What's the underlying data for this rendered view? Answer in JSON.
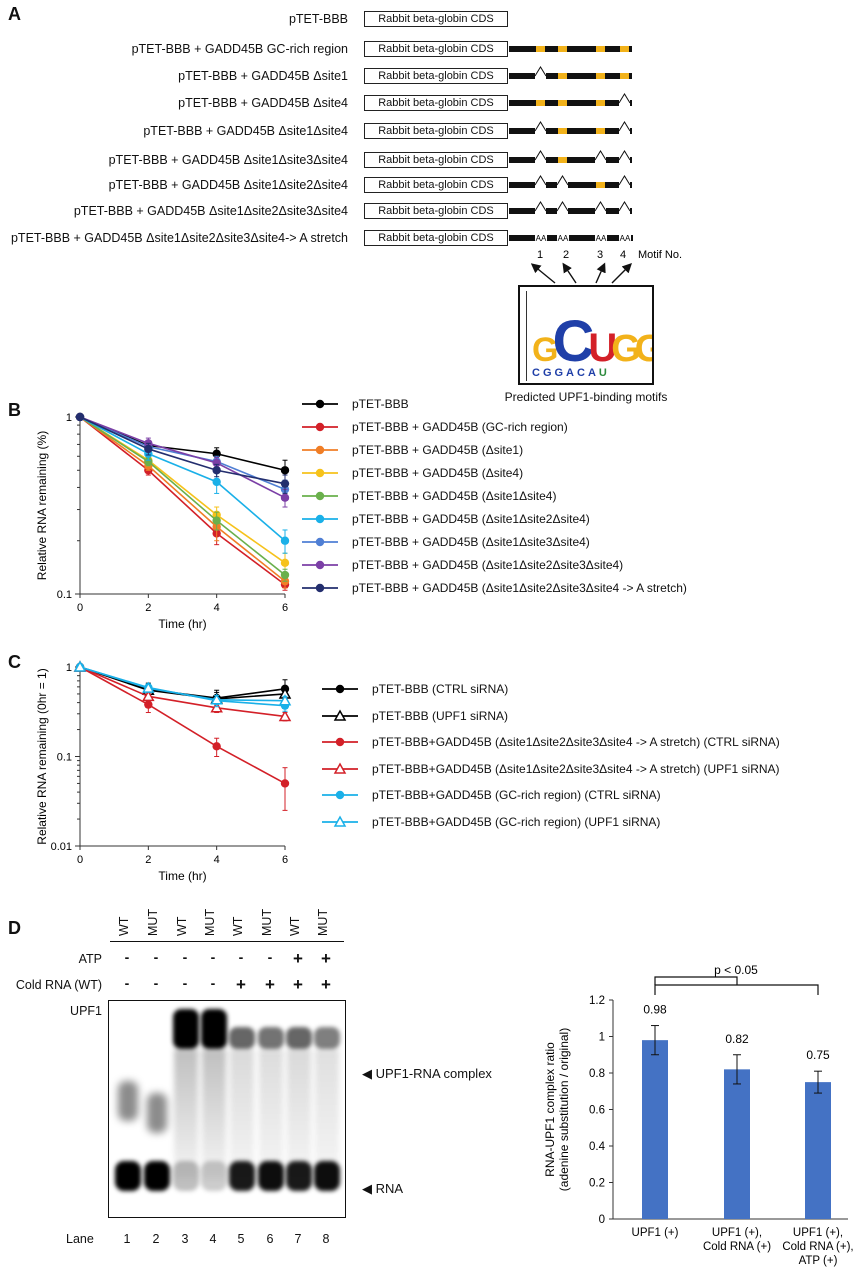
{
  "panels": {
    "A": "A",
    "B": "B",
    "C": "C",
    "D": "D"
  },
  "panelA": {
    "cds_label": "Rabbit beta-globin CDS",
    "constructs": [
      {
        "name": "pTET-BBB",
        "tail": "none"
      },
      {
        "name": "pTET-BBB + GADD45B GC-rich region",
        "tail": "full"
      },
      {
        "name": "pTET-BBB + GADD45B Δsite1",
        "tail": "d1"
      },
      {
        "name": "pTET-BBB + GADD45B Δsite4",
        "tail": "d4"
      },
      {
        "name": "pTET-BBB + GADD45B Δsite1Δsite4",
        "tail": "d14"
      },
      {
        "name": "pTET-BBB + GADD45B Δsite1Δsite3Δsite4",
        "tail": "d134"
      },
      {
        "name": "pTET-BBB + GADD45B Δsite1Δsite2Δsite4",
        "tail": "d124"
      },
      {
        "name": "pTET-BBB + GADD45B Δsite1Δsite2Δsite3Δsite4",
        "tail": "d1234"
      },
      {
        "name": "pTET-BBB + GADD45B Δsite1Δsite2Δsite3Δsite4-> A stretch",
        "tail": "aa"
      }
    ],
    "aa_label": "AA",
    "motif_numbers": [
      "1",
      "2",
      "3",
      "4"
    ],
    "motif_no_label": "Motif No.",
    "logo_caption": "Predicted UPF1-binding motifs",
    "logo_letters": "CUGGG",
    "colors": {
      "motif": "#f2b21a",
      "line": "#111111"
    }
  },
  "panelB": {
    "ylabel": "Relative RNA remaining (%)",
    "xlabel": "Time (hr)",
    "x_ticks": [
      "0",
      "2",
      "4",
      "6"
    ],
    "y_ticks": [
      "1",
      "0.1"
    ]
  },
  "panelC": {
    "ylabel": "Relative RNA remaining (0hr = 1)",
    "xlabel": "Time (hr)",
    "x_ticks": [
      "0",
      "2",
      "4",
      "6"
    ],
    "y_ticks": [
      "1",
      "0.1",
      "0.01"
    ]
  },
  "panelD": {
    "lane_header": [
      "WT",
      "MUT",
      "WT",
      "MUT",
      "WT",
      "MUT",
      "WT",
      "MUT"
    ],
    "rows": [
      {
        "label": "ATP",
        "marks": [
          "-",
          "-",
          "-",
          "-",
          "-",
          "-",
          "+",
          "+"
        ]
      },
      {
        "label": "Cold RNA (WT)",
        "marks": [
          "-",
          "-",
          "-",
          "-",
          "+",
          "+",
          "+",
          "+"
        ]
      },
      {
        "label": "UPF1",
        "marks": [
          "-",
          "-",
          "+",
          "+",
          "+",
          "+",
          "+",
          "+"
        ]
      }
    ],
    "complex_label": "UPF1-RNA complex",
    "rna_label": "RNA",
    "lane_label": "Lane",
    "lane_numbers": [
      "1",
      "2",
      "3",
      "4",
      "5",
      "6",
      "7",
      "8"
    ],
    "bar_ylabel_1": "RNA-UPF1 complex ratio",
    "bar_ylabel_2": "(adenine substitution / original)",
    "pvalue": "p < 0.05",
    "bar_y_ticks": [
      "0",
      "0.2",
      "0.4",
      "0.6",
      "0.8",
      "1",
      "1.2"
    ],
    "bar_color": "#4472c4"
  },
  "chart_data": [
    {
      "type": "line",
      "panel": "B",
      "x": [
        0,
        2,
        4,
        6
      ],
      "xlabel": "Time (hr)",
      "ylabel": "Relative RNA remaining (%)",
      "yscale": "log",
      "ylim": [
        0.1,
        1
      ],
      "series": [
        {
          "name": "pTET-BBB",
          "color": "#000000",
          "values": [
            1,
            0.69,
            0.62,
            0.5
          ],
          "err": [
            0,
            0.03,
            0.05,
            0.07
          ],
          "marker": "filled"
        },
        {
          "name": "pTET-BBB + GADD45B (GC-rich region)",
          "color": "#d32028",
          "values": [
            1,
            0.5,
            0.22,
            0.113
          ],
          "err": [
            0,
            0.03,
            0.03,
            0.01
          ],
          "marker": "filled"
        },
        {
          "name": "pTET-BBB + GADD45B (Δsite1)",
          "color": "#f07e26",
          "values": [
            1,
            0.53,
            0.24,
            0.118
          ],
          "err": [
            0,
            0.03,
            0.04,
            0.01
          ],
          "marker": "filled"
        },
        {
          "name": "pTET-BBB + GADD45B (Δsite4)",
          "color": "#f6c21b",
          "values": [
            1,
            0.57,
            0.28,
            0.15
          ],
          "err": [
            0,
            0.04,
            0.03,
            0.02
          ],
          "marker": "filled"
        },
        {
          "name": "pTET-BBB + GADD45B (Δsite1Δsite4)",
          "color": "#6ab04c",
          "values": [
            1,
            0.56,
            0.26,
            0.128
          ],
          "err": [
            0,
            0.03,
            0.03,
            0.01
          ],
          "marker": "filled"
        },
        {
          "name": "pTET-BBB + GADD45B (Δsite1Δsite2Δsite4)",
          "color": "#1ab0e8",
          "values": [
            1,
            0.62,
            0.43,
            0.2
          ],
          "err": [
            0,
            0.05,
            0.06,
            0.03
          ],
          "marker": "filled"
        },
        {
          "name": "pTET-BBB + GADD45B (Δsite1Δsite3Δsite4)",
          "color": "#4f7fd4",
          "values": [
            1,
            0.68,
            0.56,
            0.39
          ],
          "err": [
            0,
            0.05,
            0.04,
            0.05
          ],
          "marker": "filled"
        },
        {
          "name": "pTET-BBB + GADD45B (Δsite1Δsite2Δsite3Δsite4)",
          "color": "#7b3fa6",
          "values": [
            1,
            0.71,
            0.55,
            0.35
          ],
          "err": [
            0,
            0.05,
            0.04,
            0.04
          ],
          "marker": "filled"
        },
        {
          "name": "pTET-BBB + GADD45B (Δsite1Δsite2Δsite3Δsite4 -> A stretch)",
          "color": "#232e6e",
          "values": [
            1,
            0.66,
            0.5,
            0.42
          ],
          "err": [
            0,
            0.05,
            0.04,
            0.05
          ],
          "marker": "filled"
        }
      ]
    },
    {
      "type": "line",
      "panel": "C",
      "x": [
        0,
        2,
        4,
        6
      ],
      "xlabel": "Time (hr)",
      "ylabel": "Relative RNA remaining (0hr = 1)",
      "yscale": "log",
      "ylim": [
        0.01,
        1
      ],
      "series": [
        {
          "name": "pTET-BBB (CTRL siRNA)",
          "color": "#000000",
          "values": [
            1,
            0.56,
            0.45,
            0.57
          ],
          "err": [
            0,
            0.1,
            0.1,
            0.15
          ],
          "marker": "filled"
        },
        {
          "name": "pTET-BBB (UPF1 siRNA)",
          "color": "#000000",
          "values": [
            1,
            0.55,
            0.44,
            0.5
          ],
          "err": [
            0,
            0.08,
            0.08,
            0.1
          ],
          "marker": "open-triangle"
        },
        {
          "name": "pTET-BBB+GADD45B (Δsite1Δsite2Δsite3Δsite4 -> A stretch) (CTRL siRNA)",
          "color": "#d32028",
          "values": [
            1,
            0.38,
            0.13,
            0.05
          ],
          "err": [
            0,
            0.07,
            0.03,
            0.025
          ],
          "marker": "filled"
        },
        {
          "name": "pTET-BBB+GADD45B (Δsite1Δsite2Δsite3Δsite4 -> A stretch) (UPF1 siRNA)",
          "color": "#d32028",
          "values": [
            1,
            0.47,
            0.35,
            0.28
          ],
          "err": [
            0,
            0.05,
            0.04,
            0.03
          ],
          "marker": "open-triangle"
        },
        {
          "name": "pTET-BBB+GADD45B (GC-rich region) (CTRL siRNA)",
          "color": "#1ab0e8",
          "values": [
            1,
            0.59,
            0.42,
            0.37
          ],
          "err": [
            0,
            0.06,
            0.06,
            0.05
          ],
          "marker": "filled"
        },
        {
          "name": "pTET-BBB+GADD45B (GC-rich region) (UPF1 siRNA)",
          "color": "#1ab0e8",
          "values": [
            1,
            0.58,
            0.43,
            0.42
          ],
          "err": [
            0,
            0.05,
            0.05,
            0.05
          ],
          "marker": "open-triangle"
        }
      ]
    },
    {
      "type": "bar",
      "panel": "D",
      "categories": [
        [
          "UPF1 (+)"
        ],
        [
          "UPF1 (+),",
          "Cold RNA (+)"
        ],
        [
          "UPF1 (+),",
          "Cold RNA (+),",
          "ATP (+)"
        ]
      ],
      "values": [
        0.98,
        0.82,
        0.75
      ],
      "err": [
        0.08,
        0.08,
        0.06
      ],
      "labels": [
        "0.98",
        "0.82",
        "0.75"
      ],
      "ylim": [
        0,
        1.2
      ]
    }
  ]
}
